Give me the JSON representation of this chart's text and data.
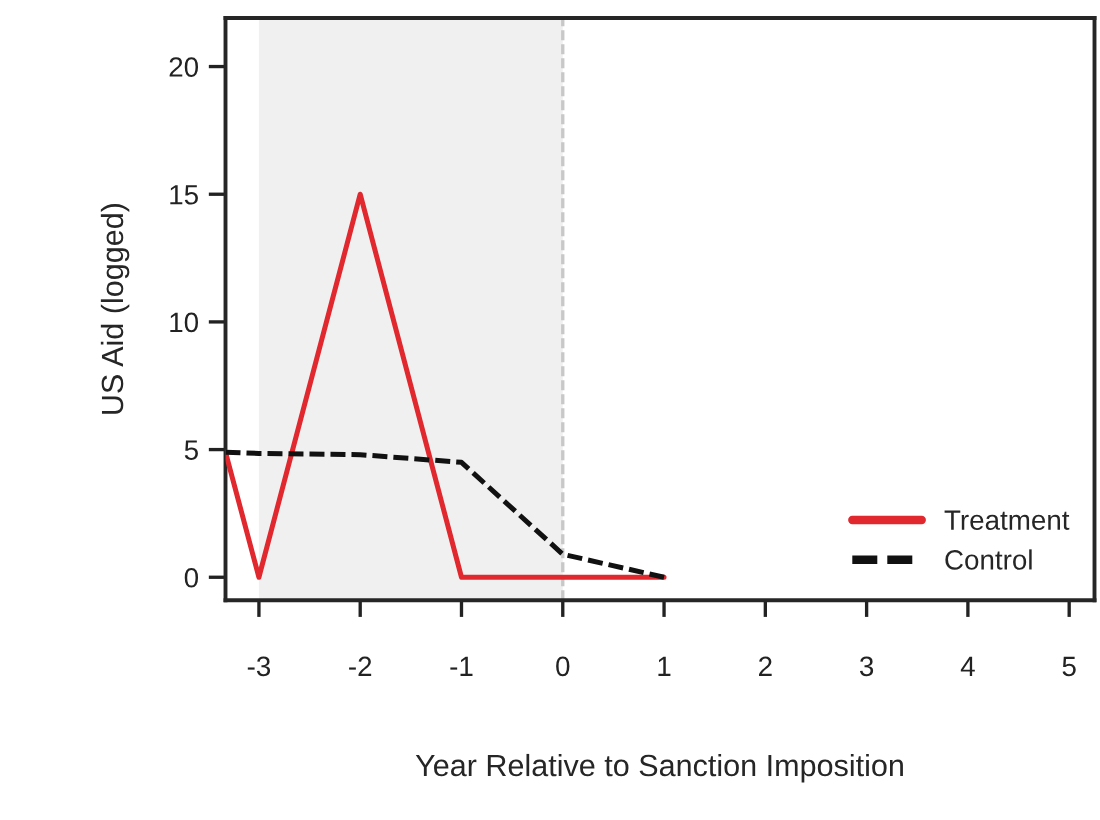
{
  "chart_data": {
    "type": "line",
    "xlabel": "Year Relative to Sanction Imposition",
    "ylabel": "US Aid (logged)",
    "xlim": [
      -3.33,
      5.25
    ],
    "ylim": [
      -0.9,
      21.9
    ],
    "xticks": [
      -3,
      -2,
      -1,
      0,
      1,
      2,
      3,
      4,
      5
    ],
    "yticks": [
      0,
      5,
      10,
      15,
      20
    ],
    "series": [
      {
        "name": "Treatment",
        "color": "#e0282e",
        "line_style": "solid",
        "x": [
          -3.33,
          -3,
          -2,
          -1,
          0,
          1
        ],
        "values": [
          4.9,
          0,
          15,
          0,
          0,
          0
        ]
      },
      {
        "name": "Control",
        "color": "#111111",
        "line_style": "dashed",
        "x": [
          -3.33,
          -3,
          -2,
          -1,
          0,
          1
        ],
        "values": [
          4.9,
          4.85,
          4.8,
          4.5,
          0.9,
          0
        ]
      }
    ],
    "bands": [
      {
        "axis": "x",
        "from": -3,
        "to": 0,
        "color": "#f0f0f0"
      }
    ],
    "ref_lines": [
      {
        "axis": "x",
        "value": 0,
        "color": "#c8c8c8",
        "line_style": "dashed"
      }
    ],
    "legend": "bottom right",
    "grid": false,
    "marker": "none"
  }
}
